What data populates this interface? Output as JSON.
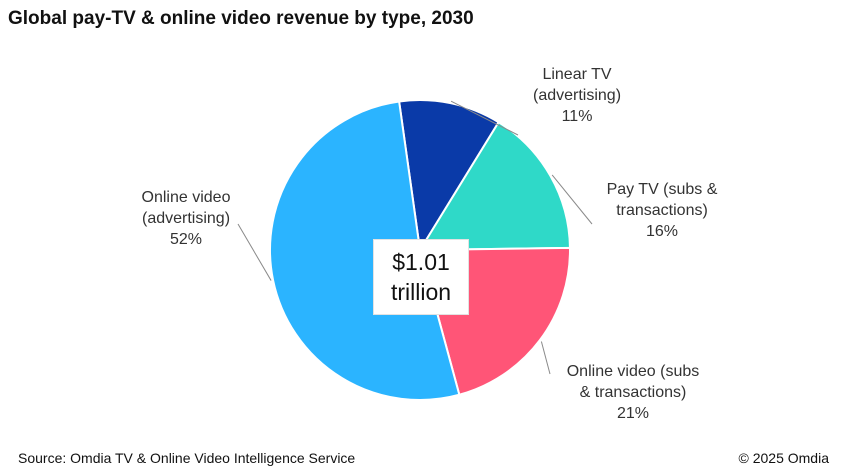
{
  "title": "Global pay-TV & online video revenue by type, 2030",
  "center": {
    "line1": "$1.01",
    "line2": "trillion"
  },
  "footer": {
    "source": "Source: Omdia TV & Online Video Intelligence Service",
    "copyright": "© 2025 Omdia"
  },
  "chart_data": {
    "type": "pie",
    "title": "Global pay-TV & online video revenue by type, 2030",
    "total_label": "$1.01 trillion",
    "slices": [
      {
        "label": [
          "Linear TV",
          "(advertising)"
        ],
        "percent_text": "11%",
        "value": 11,
        "color": "#0a3aa8"
      },
      {
        "label": [
          "Pay TV (subs &",
          "transactions)"
        ],
        "percent_text": "16%",
        "value": 16,
        "color": "#2fd9c8"
      },
      {
        "label": [
          "Online video (subs",
          "& transactions)"
        ],
        "percent_text": "21%",
        "value": 21,
        "color": "#ff5577"
      },
      {
        "label": [
          "Online video",
          "(advertising)"
        ],
        "percent_text": "52%",
        "value": 52,
        "color": "#2bb4ff"
      }
    ]
  }
}
